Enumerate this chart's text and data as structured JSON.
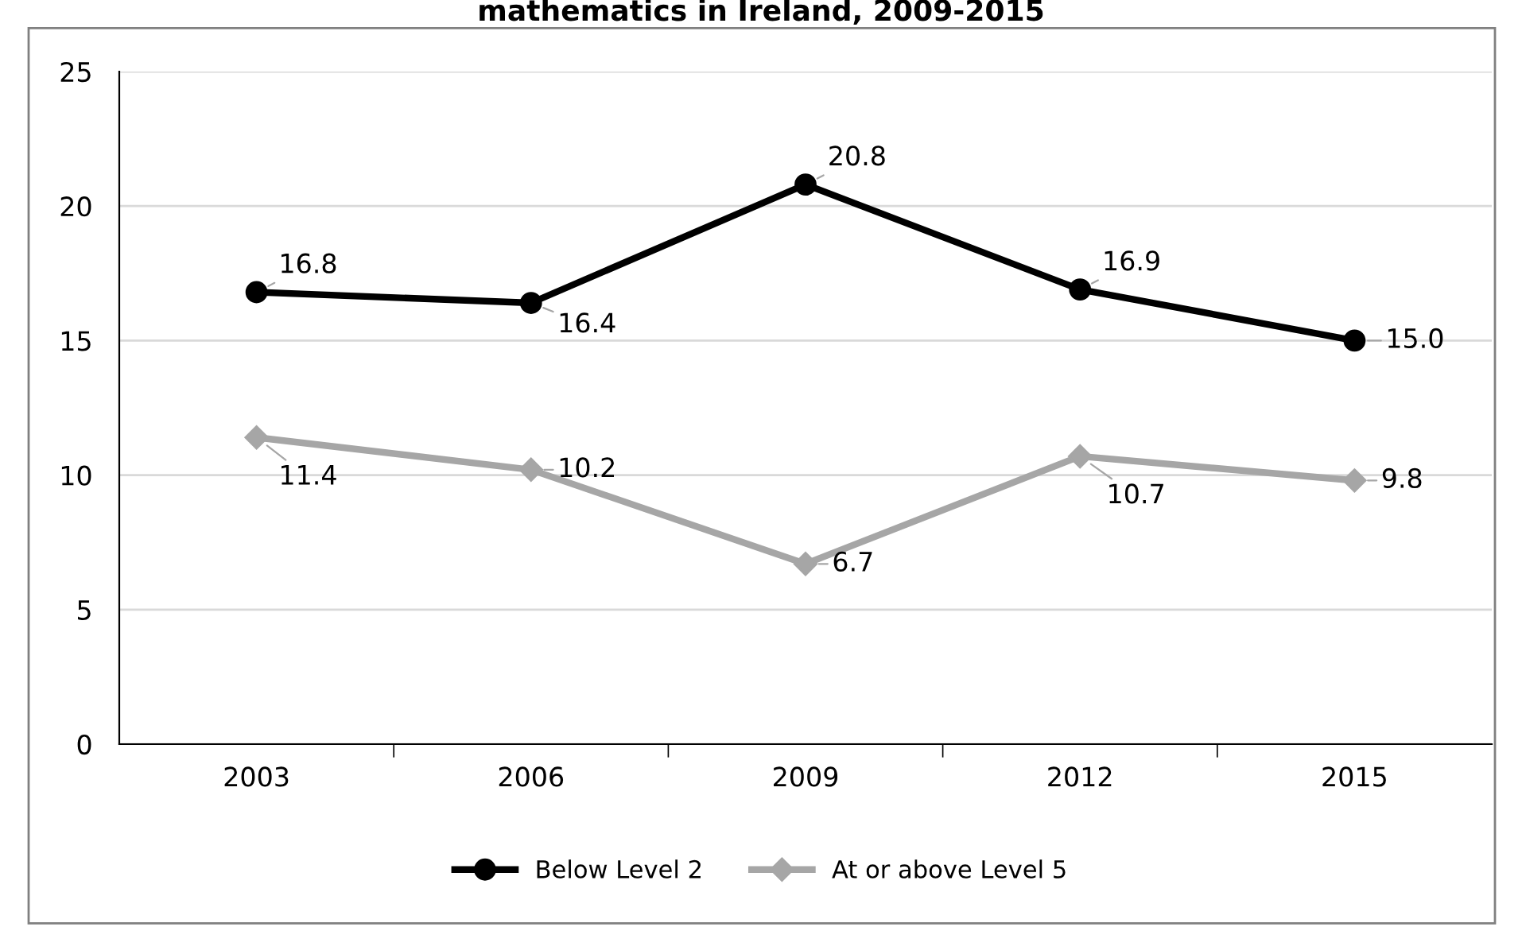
{
  "chart_data": {
    "type": "line",
    "title": "mathematics in Ireland, 2009-2015",
    "categories": [
      "2003",
      "2006",
      "2009",
      "2012",
      "2015"
    ],
    "series": [
      {
        "name": "Below Level 2",
        "color": "#000000",
        "marker": "circle",
        "values": [
          16.8,
          16.4,
          20.8,
          16.9,
          15.0
        ],
        "value_labels": [
          "16.8",
          "16.4",
          "20.8",
          "16.9",
          "15.0"
        ]
      },
      {
        "name": "At or above Level 5",
        "color": "#a6a6a6",
        "marker": "diamond",
        "values": [
          11.4,
          10.2,
          6.7,
          10.7,
          9.8
        ],
        "value_labels": [
          "11.4",
          "10.2",
          "6.7",
          "10.7",
          "9.8"
        ]
      }
    ],
    "ylim": [
      0,
      25
    ],
    "yticks": [
      0,
      5,
      10,
      15,
      20,
      25
    ],
    "grid": "y",
    "legend": "bottom"
  }
}
